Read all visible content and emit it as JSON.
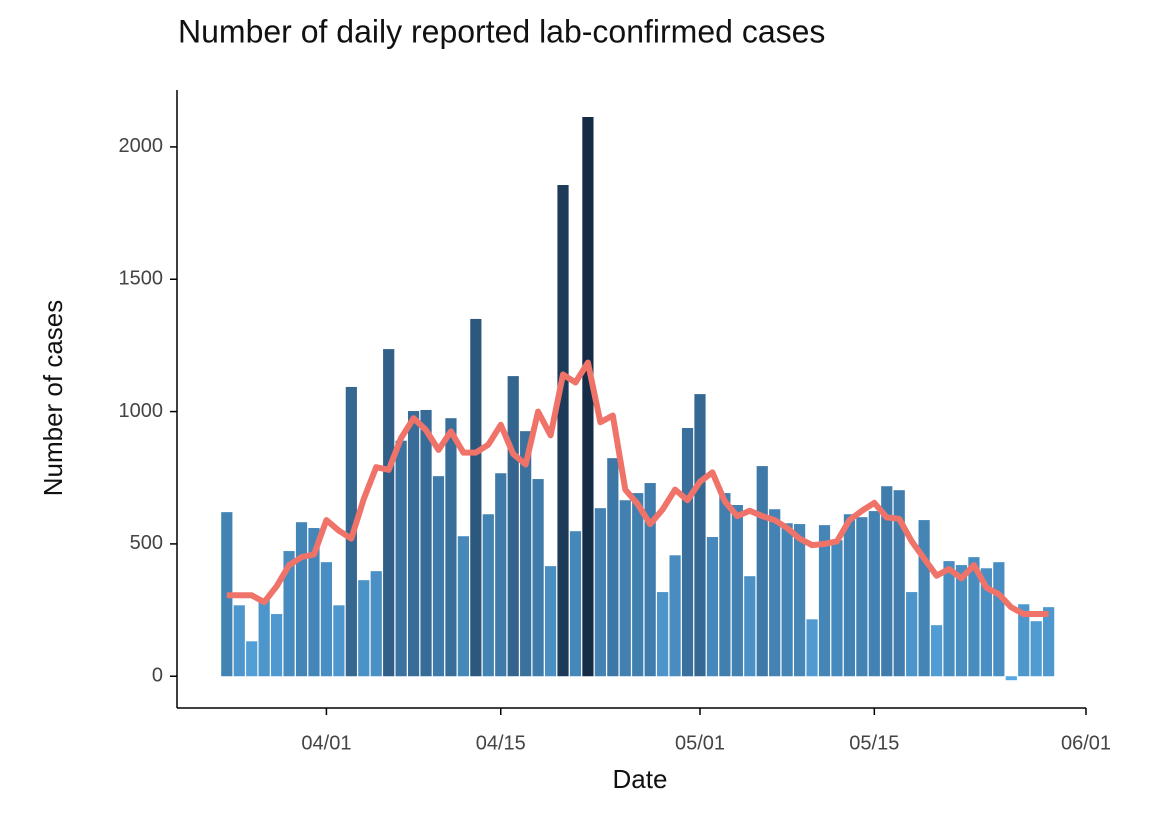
{
  "chart_data": {
    "type": "bar_line",
    "title": "Number of daily reported lab-confirmed cases",
    "xlabel": "Date",
    "ylabel": "Number of cases",
    "x": [
      "03/24",
      "03/25",
      "03/26",
      "03/27",
      "03/28",
      "03/29",
      "03/30",
      "03/31",
      "04/01",
      "04/02",
      "04/03",
      "04/04",
      "04/05",
      "04/06",
      "04/07",
      "04/08",
      "04/09",
      "04/10",
      "04/11",
      "04/12",
      "04/13",
      "04/14",
      "04/15",
      "04/16",
      "04/17",
      "04/18",
      "04/19",
      "04/20",
      "04/21",
      "04/22",
      "04/23",
      "04/24",
      "04/25",
      "04/26",
      "04/27",
      "04/28",
      "04/29",
      "04/30",
      "05/01",
      "05/02",
      "05/03",
      "05/04",
      "05/05",
      "05/06",
      "05/07",
      "05/08",
      "05/09",
      "05/10",
      "05/11",
      "05/12",
      "05/13",
      "05/14",
      "05/15",
      "05/16",
      "05/17",
      "05/18",
      "05/19",
      "05/20",
      "05/21",
      "05/22",
      "05/23",
      "05/24",
      "05/25",
      "05/26",
      "05/27",
      "05/28",
      "05/29"
    ],
    "values": [
      620,
      268,
      132,
      290,
      235,
      473,
      582,
      560,
      431,
      268,
      1093,
      363,
      397,
      1236,
      890,
      1002,
      1006,
      756,
      975,
      529,
      1350,
      612,
      767,
      1134,
      926,
      745,
      416,
      1856,
      548,
      2113,
      635,
      824,
      665,
      692,
      730,
      318,
      457,
      938,
      1066,
      526,
      692,
      647,
      378,
      794,
      631,
      578,
      575,
      215,
      571,
      514,
      612,
      601,
      624,
      718,
      703,
      318,
      590,
      193,
      435,
      420,
      450,
      408,
      431,
      -15,
      272,
      208,
      261
    ],
    "bar_colormap": [
      "#5aaeea",
      "#12263f"
    ],
    "line_values": [
      306,
      306,
      306,
      280,
      340,
      420,
      450,
      460,
      590,
      550,
      520,
      670,
      790,
      780,
      900,
      975,
      930,
      855,
      925,
      845,
      845,
      875,
      950,
      840,
      800,
      1000,
      910,
      1140,
      1110,
      1185,
      960,
      985,
      705,
      650,
      575,
      630,
      705,
      665,
      735,
      770,
      660,
      605,
      625,
      605,
      590,
      560,
      520,
      495,
      500,
      510,
      590,
      625,
      655,
      600,
      595,
      510,
      445,
      380,
      405,
      370,
      420,
      335,
      310,
      260,
      235,
      235,
      235
    ],
    "line_color": "#f0736a",
    "xlim": [
      "03/20",
      "06/01"
    ],
    "xticks": [
      "04/01",
      "04/15",
      "05/01",
      "05/15",
      "06/01"
    ],
    "ylim": [
      -120,
      2215
    ],
    "yticks": [
      0,
      500,
      1000,
      1500,
      2000
    ]
  }
}
